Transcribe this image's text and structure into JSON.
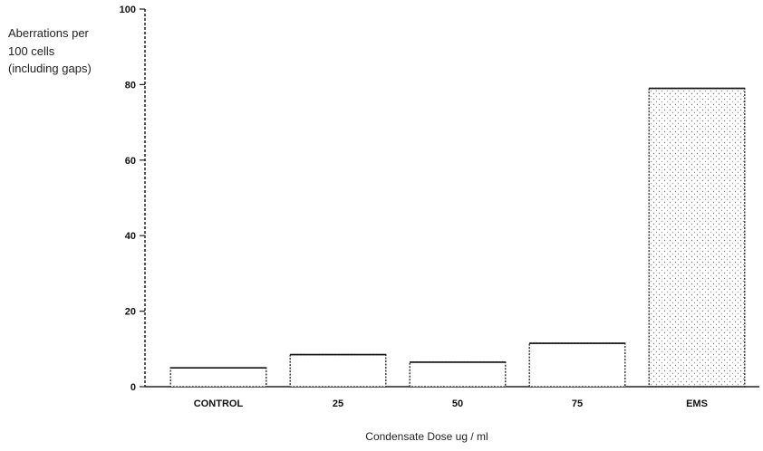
{
  "chart_data": {
    "type": "bar",
    "title": "",
    "ylabel_lines": [
      "Aberrations per",
      "100 cells",
      "(including gaps)"
    ],
    "xlabel": "Condensate Dose ug / ml",
    "categories": [
      "CONTROL",
      "25",
      "50",
      "75",
      "EMS"
    ],
    "values": [
      5,
      8.5,
      6.5,
      11.5,
      79
    ],
    "ylim": [
      0,
      100
    ],
    "yticks": [
      "0",
      "20",
      "40",
      "60",
      "80",
      "100"
    ],
    "grid": false,
    "legend": "none",
    "bar_fill": "#ffffff",
    "bar_stroke": "#222222"
  }
}
